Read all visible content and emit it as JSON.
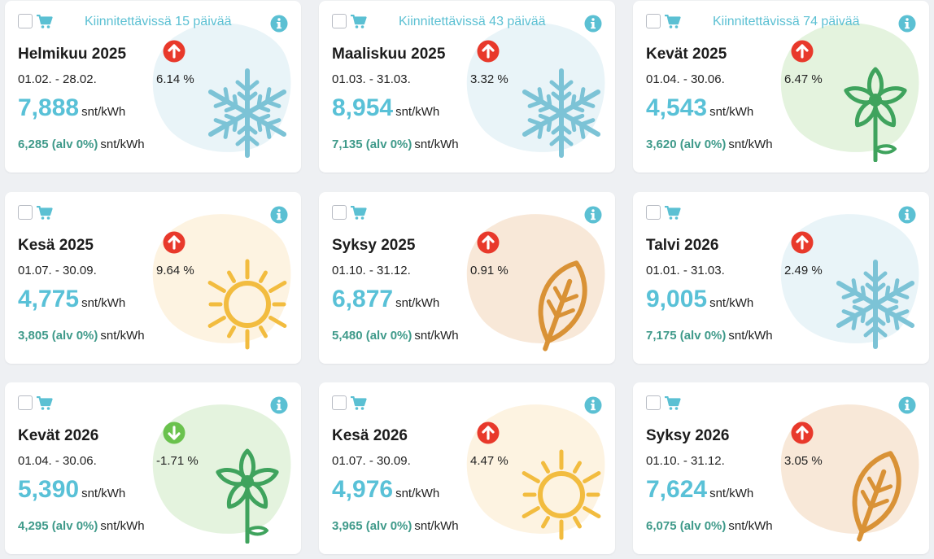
{
  "colors": {
    "price": "#59c1d7",
    "vat": "#3f9a8a",
    "up": "#e8392b",
    "down": "#6ac24d",
    "icon": "#5bc0d3"
  },
  "cards": [
    {
      "pin_label": "Kiinnitettävissä 15 päivää",
      "title": "Helmikuu 2025",
      "dates": "01.02. - 28.02.",
      "trend": "up",
      "change": "6.14 %",
      "price": "7,888",
      "price_unit": "snt/kWh",
      "vat_price": "6,285 (alv 0%)",
      "vat_unit": "snt/kWh",
      "season": "winter"
    },
    {
      "pin_label": "Kiinnitettävissä 43 päivää",
      "title": "Maaliskuu 2025",
      "dates": "01.03. - 31.03.",
      "trend": "up",
      "change": "3.32 %",
      "price": "8,954",
      "price_unit": "snt/kWh",
      "vat_price": "7,135 (alv 0%)",
      "vat_unit": "snt/kWh",
      "season": "winter"
    },
    {
      "pin_label": "Kiinnitettävissä 74 päivää",
      "title": "Kevät 2025",
      "dates": "01.04. - 30.06.",
      "trend": "up",
      "change": "6.47 %",
      "price": "4,543",
      "price_unit": "snt/kWh",
      "vat_price": "3,620 (alv 0%)",
      "vat_unit": "snt/kWh",
      "season": "spring"
    },
    {
      "pin_label": "",
      "title": "Kesä 2025",
      "dates": "01.07. - 30.09.",
      "trend": "up",
      "change": "9.64 %",
      "price": "4,775",
      "price_unit": "snt/kWh",
      "vat_price": "3,805 (alv 0%)",
      "vat_unit": "snt/kWh",
      "season": "summer"
    },
    {
      "pin_label": "",
      "title": "Syksy 2025",
      "dates": "01.10. - 31.12.",
      "trend": "up",
      "change": "0.91 %",
      "price": "6,877",
      "price_unit": "snt/kWh",
      "vat_price": "5,480 (alv 0%)",
      "vat_unit": "snt/kWh",
      "season": "autumn"
    },
    {
      "pin_label": "",
      "title": "Talvi 2026",
      "dates": "01.01. - 31.03.",
      "trend": "up",
      "change": "2.49 %",
      "price": "9,005",
      "price_unit": "snt/kWh",
      "vat_price": "7,175 (alv 0%)",
      "vat_unit": "snt/kWh",
      "season": "winter"
    },
    {
      "pin_label": "",
      "title": "Kevät 2026",
      "dates": "01.04. - 30.06.",
      "trend": "down",
      "change": "-1.71 %",
      "price": "5,390",
      "price_unit": "snt/kWh",
      "vat_price": "4,295 (alv 0%)",
      "vat_unit": "snt/kWh",
      "season": "spring"
    },
    {
      "pin_label": "",
      "title": "Kesä 2026",
      "dates": "01.07. - 30.09.",
      "trend": "up",
      "change": "4.47 %",
      "price": "4,976",
      "price_unit": "snt/kWh",
      "vat_price": "3,965 (alv 0%)",
      "vat_unit": "snt/kWh",
      "season": "summer"
    },
    {
      "pin_label": "",
      "title": "Syksy 2026",
      "dates": "01.10. - 31.12.",
      "trend": "up",
      "change": "3.05 %",
      "price": "7,624",
      "price_unit": "snt/kWh",
      "vat_price": "6,075 (alv 0%)",
      "vat_unit": "snt/kWh",
      "season": "autumn"
    }
  ]
}
